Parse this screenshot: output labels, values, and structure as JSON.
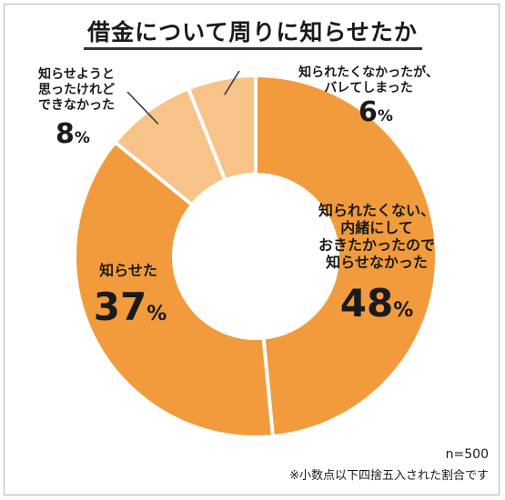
{
  "chart_data": {
    "type": "donut",
    "title": "借金について周りに知らせたか",
    "categories": [
      "知られたくない、内緒にしておきたかったので知らせなかった",
      "知らせた",
      "知らせようと思ったけれどできなかった",
      "知られたくなかったが、バレてしまった"
    ],
    "label_lines": [
      [
        "知られたくない、",
        "内緒にして",
        "おきたかったので",
        "知らせなかった"
      ],
      [
        "知らせた"
      ],
      [
        "知らせようと",
        "思ったけれど",
        "できなかった"
      ],
      [
        "知られたくなかったが、",
        "バレてしまった"
      ]
    ],
    "values": [
      48,
      37,
      8,
      6
    ],
    "value_labels": [
      "48",
      "37",
      "8",
      "6"
    ],
    "unit": "%",
    "colors": [
      "#f29b3c",
      "#f29b3c",
      "#f7c389",
      "#f7c389"
    ],
    "legend": "none",
    "sample_note": "n=500",
    "rounding_note": "※小数点以下四捨五入された割合です"
  }
}
